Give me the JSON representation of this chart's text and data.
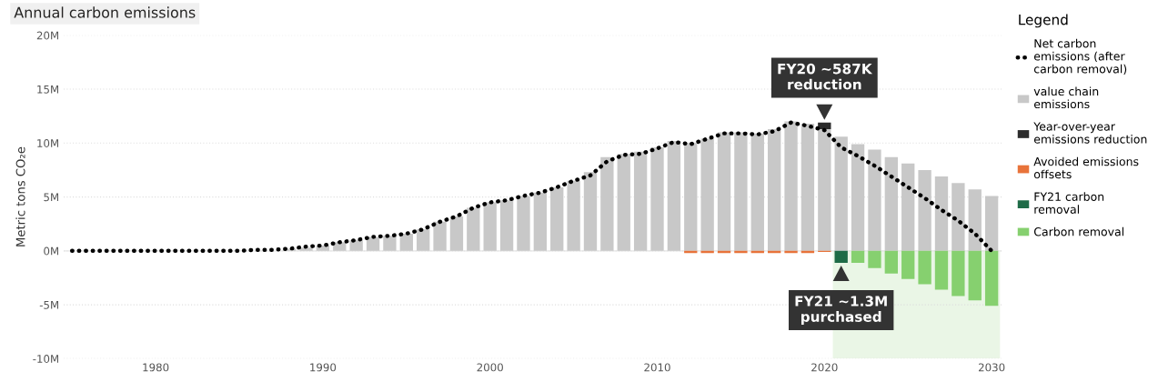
{
  "chart_data": {
    "type": "bar",
    "title": "Annual carbon emissions",
    "ylabel": "Metric tons CO₂e",
    "legend_title": "Legend",
    "stacked": true,
    "legend": "right",
    "grid": "y",
    "x": [
      1975,
      1976,
      1977,
      1978,
      1979,
      1980,
      1981,
      1982,
      1983,
      1984,
      1985,
      1986,
      1987,
      1988,
      1989,
      1990,
      1991,
      1992,
      1993,
      1994,
      1995,
      1996,
      1997,
      1998,
      1999,
      2000,
      2001,
      2002,
      2003,
      2004,
      2005,
      2006,
      2007,
      2008,
      2009,
      2010,
      2011,
      2012,
      2013,
      2014,
      2015,
      2016,
      2017,
      2018,
      2019,
      2020,
      2021,
      2022,
      2023,
      2024,
      2025,
      2026,
      2027,
      2028,
      2029,
      2030
    ],
    "xlim": [
      1974.5,
      2030.6
    ],
    "xticks": [
      1980,
      1990,
      2000,
      2010,
      2020,
      2030
    ],
    "ylim": [
      -10,
      20
    ],
    "yticks": [
      {
        "value": -10,
        "label": "-10M"
      },
      {
        "value": -5,
        "label": "-5M"
      },
      {
        "value": 0,
        "label": "0M"
      },
      {
        "value": 5,
        "label": "5M"
      },
      {
        "value": 10,
        "label": "10M"
      },
      {
        "value": 15,
        "label": "15M"
      },
      {
        "value": 20,
        "label": "20M"
      }
    ],
    "series": [
      {
        "name": "Net carbon\nemissions (after\ncarbon removal)",
        "type": "line",
        "line_style": "dotted",
        "color": "#000000",
        "values": [
          0,
          0,
          0,
          0,
          0,
          0,
          0,
          0,
          0,
          0,
          0,
          0.1,
          0.1,
          0.2,
          0.4,
          0.5,
          0.8,
          1.0,
          1.3,
          1.4,
          1.6,
          2.0,
          2.7,
          3.2,
          4.0,
          4.5,
          4.7,
          5.1,
          5.4,
          5.9,
          6.5,
          7.0,
          8.3,
          8.9,
          9.0,
          9.5,
          10.1,
          9.9,
          10.4,
          10.9,
          10.9,
          10.8,
          11.1,
          11.9,
          11.6,
          11.2,
          9.6,
          8.8,
          7.9,
          6.9,
          5.9,
          4.9,
          3.8,
          2.8,
          1.6,
          0
        ]
      },
      {
        "name": "value chain\nemissions",
        "color": "#c8c8c8",
        "values": [
          null,
          null,
          null,
          null,
          null,
          null,
          null,
          null,
          null,
          null,
          null,
          null,
          null,
          0.2,
          0.3,
          0.5,
          0.8,
          1.0,
          1.3,
          1.4,
          1.6,
          2.0,
          2.7,
          3.2,
          4.0,
          4.5,
          4.7,
          5.1,
          5.4,
          5.9,
          6.5,
          7.3,
          8.7,
          9.0,
          9.2,
          9.6,
          10.2,
          10.0,
          10.4,
          11.0,
          11.0,
          10.9,
          11.3,
          12.0,
          11.8,
          11.3,
          10.6,
          9.9,
          9.4,
          8.7,
          8.1,
          7.5,
          6.9,
          6.3,
          5.7,
          5.1
        ]
      },
      {
        "name": "Year-over-year\nemissions reduction",
        "color": "#2b2b2b",
        "values": [
          null,
          null,
          null,
          null,
          null,
          null,
          null,
          null,
          null,
          null,
          null,
          null,
          null,
          null,
          null,
          null,
          null,
          null,
          null,
          null,
          null,
          null,
          null,
          null,
          null,
          null,
          null,
          null,
          null,
          null,
          null,
          null,
          null,
          null,
          null,
          null,
          null,
          null,
          null,
          null,
          null,
          null,
          null,
          null,
          null,
          0.6,
          null,
          null,
          null,
          null,
          null,
          null,
          null,
          null,
          null,
          null
        ]
      },
      {
        "name": "Avoided emissions\noffsets",
        "color": "#e8733a",
        "values": [
          null,
          null,
          null,
          null,
          null,
          null,
          null,
          null,
          null,
          null,
          null,
          null,
          null,
          null,
          null,
          null,
          null,
          null,
          null,
          null,
          null,
          null,
          null,
          null,
          null,
          null,
          null,
          null,
          null,
          null,
          null,
          null,
          null,
          null,
          null,
          null,
          null,
          -0.2,
          -0.2,
          -0.2,
          -0.2,
          -0.2,
          -0.2,
          -0.2,
          -0.2,
          -0.1,
          null,
          null,
          null,
          null,
          null,
          null,
          null,
          null,
          null,
          null
        ]
      },
      {
        "name": "FY21 carbon\nremoval",
        "color": "#1e6b47",
        "values": [
          null,
          null,
          null,
          null,
          null,
          null,
          null,
          null,
          null,
          null,
          null,
          null,
          null,
          null,
          null,
          null,
          null,
          null,
          null,
          null,
          null,
          null,
          null,
          null,
          null,
          null,
          null,
          null,
          null,
          null,
          null,
          null,
          null,
          null,
          null,
          null,
          null,
          null,
          null,
          null,
          null,
          null,
          null,
          null,
          null,
          null,
          -1.1,
          null,
          null,
          null,
          null,
          null,
          null,
          null,
          null,
          null
        ]
      },
      {
        "name": "Carbon removal",
        "color": "#86d06f",
        "values": [
          null,
          null,
          null,
          null,
          null,
          null,
          null,
          null,
          null,
          null,
          null,
          null,
          null,
          null,
          null,
          null,
          null,
          null,
          null,
          null,
          null,
          null,
          null,
          null,
          null,
          null,
          null,
          null,
          null,
          null,
          null,
          null,
          null,
          null,
          null,
          null,
          null,
          null,
          null,
          null,
          null,
          null,
          null,
          null,
          null,
          null,
          null,
          -1.1,
          -1.6,
          -2.1,
          -2.6,
          -3.1,
          -3.6,
          -4.2,
          -4.6,
          -5.1
        ]
      }
    ],
    "bands": [
      {
        "axis": "x",
        "from": 2020.5,
        "to": 2030.5,
        "color": "#eaf6e6"
      }
    ],
    "annotations": [
      {
        "text": "FY20 ~587K\nreduction",
        "x": 2020,
        "y": 11.9
      },
      {
        "text": "FY21 ~1.3M\npurchased",
        "x": 2021,
        "y": -1.1
      }
    ]
  }
}
